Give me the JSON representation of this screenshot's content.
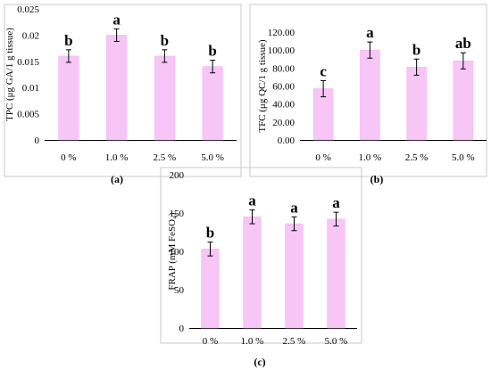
{
  "colors": {
    "bar_fill": "#f7c6f7",
    "bar_stroke": "#f2b0f2",
    "axis": "#000000",
    "border": "#c8c8c8"
  },
  "chart_data": [
    {
      "type": "bar",
      "panel_label": "(a)",
      "ylabel": "TPC (μg GA/1 g tissue)",
      "categories": [
        "0 %",
        "1.0 %",
        "2.5 %",
        "5.0 %"
      ],
      "values": [
        0.016,
        0.02,
        0.016,
        0.014
      ],
      "errors": [
        0.0012,
        0.0012,
        0.0012,
        0.0012
      ],
      "letters": [
        "b",
        "a",
        "b",
        "b"
      ],
      "ylim": [
        0,
        0.025
      ],
      "yticks": [
        0,
        0.005,
        0.01,
        0.015,
        0.02,
        0.025
      ],
      "ytick_labels": [
        "0",
        "0.005",
        "0.01",
        "0.015",
        "0.02",
        "0.025"
      ],
      "grid": false
    },
    {
      "type": "bar",
      "panel_label": "(b)",
      "ylabel": "TFC (μg QC/1 g tissue)",
      "categories": [
        "0 %",
        "1.0 %",
        "2.5 %",
        "5.0 %"
      ],
      "values": [
        57,
        100,
        81,
        88
      ],
      "errors": [
        9,
        9,
        9,
        9
      ],
      "letters": [
        "c",
        "a",
        "b",
        "ab"
      ],
      "ylim": [
        0,
        120
      ],
      "yticks": [
        0,
        20,
        40,
        60,
        80,
        100,
        120
      ],
      "ytick_labels": [
        "0.00",
        "20.00",
        "40.00",
        "60.00",
        "80.00",
        "100.00",
        "120.00"
      ],
      "grid": false
    },
    {
      "type": "bar",
      "panel_label": "(c)",
      "ylabel": "FRAP (mM FeSO₄)",
      "categories": [
        "0 %",
        "1.0 %",
        "2.5 %",
        "5.0 %"
      ],
      "values": [
        103,
        145,
        136,
        142
      ],
      "errors": [
        9,
        9,
        9,
        9
      ],
      "letters": [
        "b",
        "a",
        "a",
        "a"
      ],
      "ylim": [
        0,
        200
      ],
      "yticks": [
        0,
        50,
        100,
        150,
        200
      ],
      "ytick_labels": [
        "0",
        "50",
        "100",
        "150",
        "200"
      ],
      "grid": false
    }
  ]
}
